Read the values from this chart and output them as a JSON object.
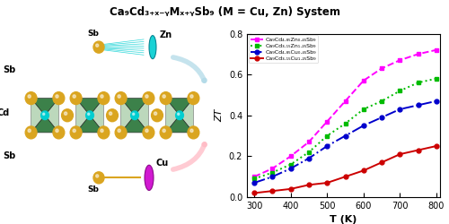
{
  "title": "Ca₉Cd₃₊ₓ₋ᵧMₓ₊ᵧSb₉ (M = Cu, Zn) System",
  "xlabel": "T (K)",
  "ylabel": "ZT",
  "xlim": [
    280,
    810
  ],
  "ylim": [
    0.0,
    0.8
  ],
  "xticks": [
    300,
    400,
    500,
    600,
    700,
    800
  ],
  "yticks": [
    0.0,
    0.2,
    0.4,
    0.6,
    0.8
  ],
  "series": [
    {
      "label": "Ca₉Cd₄.₈₅Zn₀.₄₅Sb₉",
      "color": "#FF00FF",
      "linestyle": "--",
      "marker": "s",
      "T": [
        300,
        350,
        400,
        450,
        500,
        550,
        600,
        650,
        700,
        750,
        800
      ],
      "ZT": [
        0.1,
        0.14,
        0.2,
        0.27,
        0.37,
        0.47,
        0.57,
        0.63,
        0.67,
        0.7,
        0.72
      ]
    },
    {
      "label": "Ca₉Cd₃.₁₅Zn₁.₂₅Sb₉",
      "color": "#00BB00",
      "linestyle": ":",
      "marker": "s",
      "T": [
        300,
        350,
        400,
        450,
        500,
        550,
        600,
        650,
        700,
        750,
        800
      ],
      "ZT": [
        0.09,
        0.12,
        0.16,
        0.22,
        0.3,
        0.36,
        0.43,
        0.47,
        0.52,
        0.56,
        0.58
      ]
    },
    {
      "label": "Ca₉Cd₄.₈₅Cu₀.₄₅Sb₉",
      "color": "#0000CC",
      "linestyle": "-.",
      "marker": "o",
      "T": [
        300,
        350,
        400,
        450,
        500,
        550,
        600,
        650,
        700,
        750,
        800
      ],
      "ZT": [
        0.07,
        0.1,
        0.14,
        0.19,
        0.25,
        0.3,
        0.35,
        0.39,
        0.43,
        0.45,
        0.47
      ]
    },
    {
      "label": "Ca₉Cd₃.₁₅Cu₁.₂₅Sb₉",
      "color": "#CC0000",
      "linestyle": "-",
      "marker": "o",
      "T": [
        300,
        350,
        400,
        450,
        500,
        550,
        600,
        650,
        700,
        750,
        800
      ],
      "ZT": [
        0.02,
        0.03,
        0.04,
        0.06,
        0.07,
        0.1,
        0.13,
        0.17,
        0.21,
        0.23,
        0.25
      ]
    }
  ],
  "background_color": "#ffffff",
  "fig_width": 5.0,
  "fig_height": 2.5,
  "dpi": 100,
  "crystal": {
    "octahedra_dark_color": "#1a6b2a",
    "octahedra_light_color": "#a0c8a0",
    "sb_color": "#DAA520",
    "cyan_color": "#00CED1",
    "zn_arrow_color": "#00CED1",
    "cu_arrow_color": "#FF69B4",
    "cu_ellipse_color": "#CC00CC",
    "label_color": "#000000"
  }
}
